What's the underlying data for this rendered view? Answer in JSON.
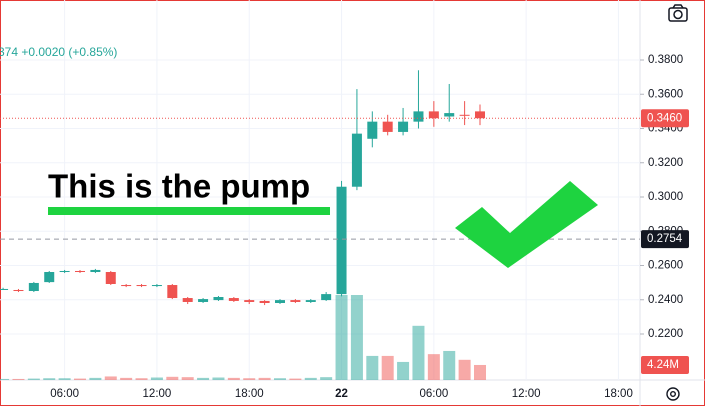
{
  "chart_data": {
    "type": "candlestick",
    "legend_text": "374 +0.0020 (+0.85%)",
    "annotation": "This is the pump",
    "x": [
      0,
      1,
      2,
      3,
      4,
      5,
      6,
      7,
      8,
      9,
      10,
      11,
      12,
      13,
      14,
      15,
      16,
      17,
      18,
      19,
      20,
      21,
      22,
      23,
      24,
      25,
      26,
      27,
      28,
      29,
      30,
      31
    ],
    "open": [
      0.2463,
      0.2457,
      0.2451,
      0.2503,
      0.2562,
      0.2568,
      0.2562,
      0.2562,
      0.2486,
      0.2486,
      0.248,
      0.2486,
      0.241,
      0.2387,
      0.2398,
      0.241,
      0.2398,
      0.2393,
      0.2381,
      0.2398,
      0.2387,
      0.2398,
      0.2433,
      0.306,
      0.334,
      0.344,
      0.338,
      0.344,
      0.35,
      0.347,
      0.348,
      0.35
    ],
    "high": [
      0.247,
      0.2463,
      0.2504,
      0.2568,
      0.2574,
      0.2574,
      0.258,
      0.2568,
      0.2492,
      0.2492,
      0.2492,
      0.2492,
      0.2416,
      0.241,
      0.2422,
      0.2416,
      0.2404,
      0.2398,
      0.2404,
      0.2404,
      0.2404,
      0.2445,
      0.3094,
      0.363,
      0.35,
      0.348,
      0.352,
      0.374,
      0.356,
      0.366,
      0.356,
      0.354
    ],
    "low": [
      0.2457,
      0.2445,
      0.2445,
      0.2498,
      0.2556,
      0.2556,
      0.2556,
      0.2486,
      0.2474,
      0.2474,
      0.2474,
      0.2404,
      0.2375,
      0.2381,
      0.2393,
      0.2387,
      0.2375,
      0.2369,
      0.2375,
      0.2381,
      0.2381,
      0.2393,
      0.242,
      0.304,
      0.329,
      0.336,
      0.336,
      0.34,
      0.341,
      0.344,
      0.342,
      0.342
    ],
    "close": [
      0.2463,
      0.2451,
      0.2498,
      0.2562,
      0.2568,
      0.2562,
      0.2574,
      0.2492,
      0.248,
      0.248,
      0.2486,
      0.241,
      0.2387,
      0.2404,
      0.2416,
      0.2393,
      0.2387,
      0.2381,
      0.2398,
      0.2387,
      0.2398,
      0.2433,
      0.306,
      0.337,
      0.344,
      0.338,
      0.344,
      0.35,
      0.346,
      0.349,
      0.3475,
      0.346
    ],
    "volume": [
      300000,
      300000,
      400000,
      500000,
      500000,
      400000,
      600000,
      1000000,
      600000,
      500000,
      700000,
      900000,
      800000,
      600000,
      700000,
      600000,
      500000,
      600000,
      500000,
      400000,
      600000,
      800000,
      24000000,
      24000000,
      6800000,
      6800000,
      5100000,
      15300000,
      7300000,
      8200000,
      5700000,
      4240000
    ],
    "volume_value_labels": [
      null,
      null,
      null,
      null,
      null,
      null,
      null,
      null,
      null,
      null,
      null,
      null,
      null,
      null,
      null,
      null,
      null,
      null,
      null,
      null,
      null,
      null,
      null,
      null,
      null,
      null,
      null,
      null,
      null,
      null,
      null,
      "4.24M"
    ],
    "up_color": "#26a69a",
    "down_color": "#ef5350",
    "xlim": [
      -0.2,
      41.4
    ],
    "xticks": [
      {
        "value": 4,
        "label": "06:00"
      },
      {
        "value": 10,
        "label": "12:00"
      },
      {
        "value": 16,
        "label": "18:00"
      },
      {
        "value": 22,
        "label": "22"
      },
      {
        "value": 28,
        "label": "06:00"
      },
      {
        "value": 34,
        "label": "12:00"
      },
      {
        "value": 40,
        "label": "18:00"
      }
    ],
    "ylim": [
      0.2,
      0.4
    ],
    "yticks": [
      {
        "value": 0.22,
        "label": "0.2200"
      },
      {
        "value": 0.24,
        "label": "0.2400"
      },
      {
        "value": 0.26,
        "label": "0.2600"
      },
      {
        "value": 0.28,
        "label": "0.2800"
      },
      {
        "value": 0.3,
        "label": "0.3000"
      },
      {
        "value": 0.32,
        "label": "0.3200"
      },
      {
        "value": 0.34,
        "label": "0.3400"
      },
      {
        "value": 0.36,
        "label": "0.3600"
      },
      {
        "value": 0.38,
        "label": "0.3800"
      }
    ],
    "price_line": {
      "value": 0.346,
      "label": "0.3460"
    },
    "crosshair_line": {
      "value": 0.2754,
      "label": "0.2754"
    },
    "grid": true
  }
}
